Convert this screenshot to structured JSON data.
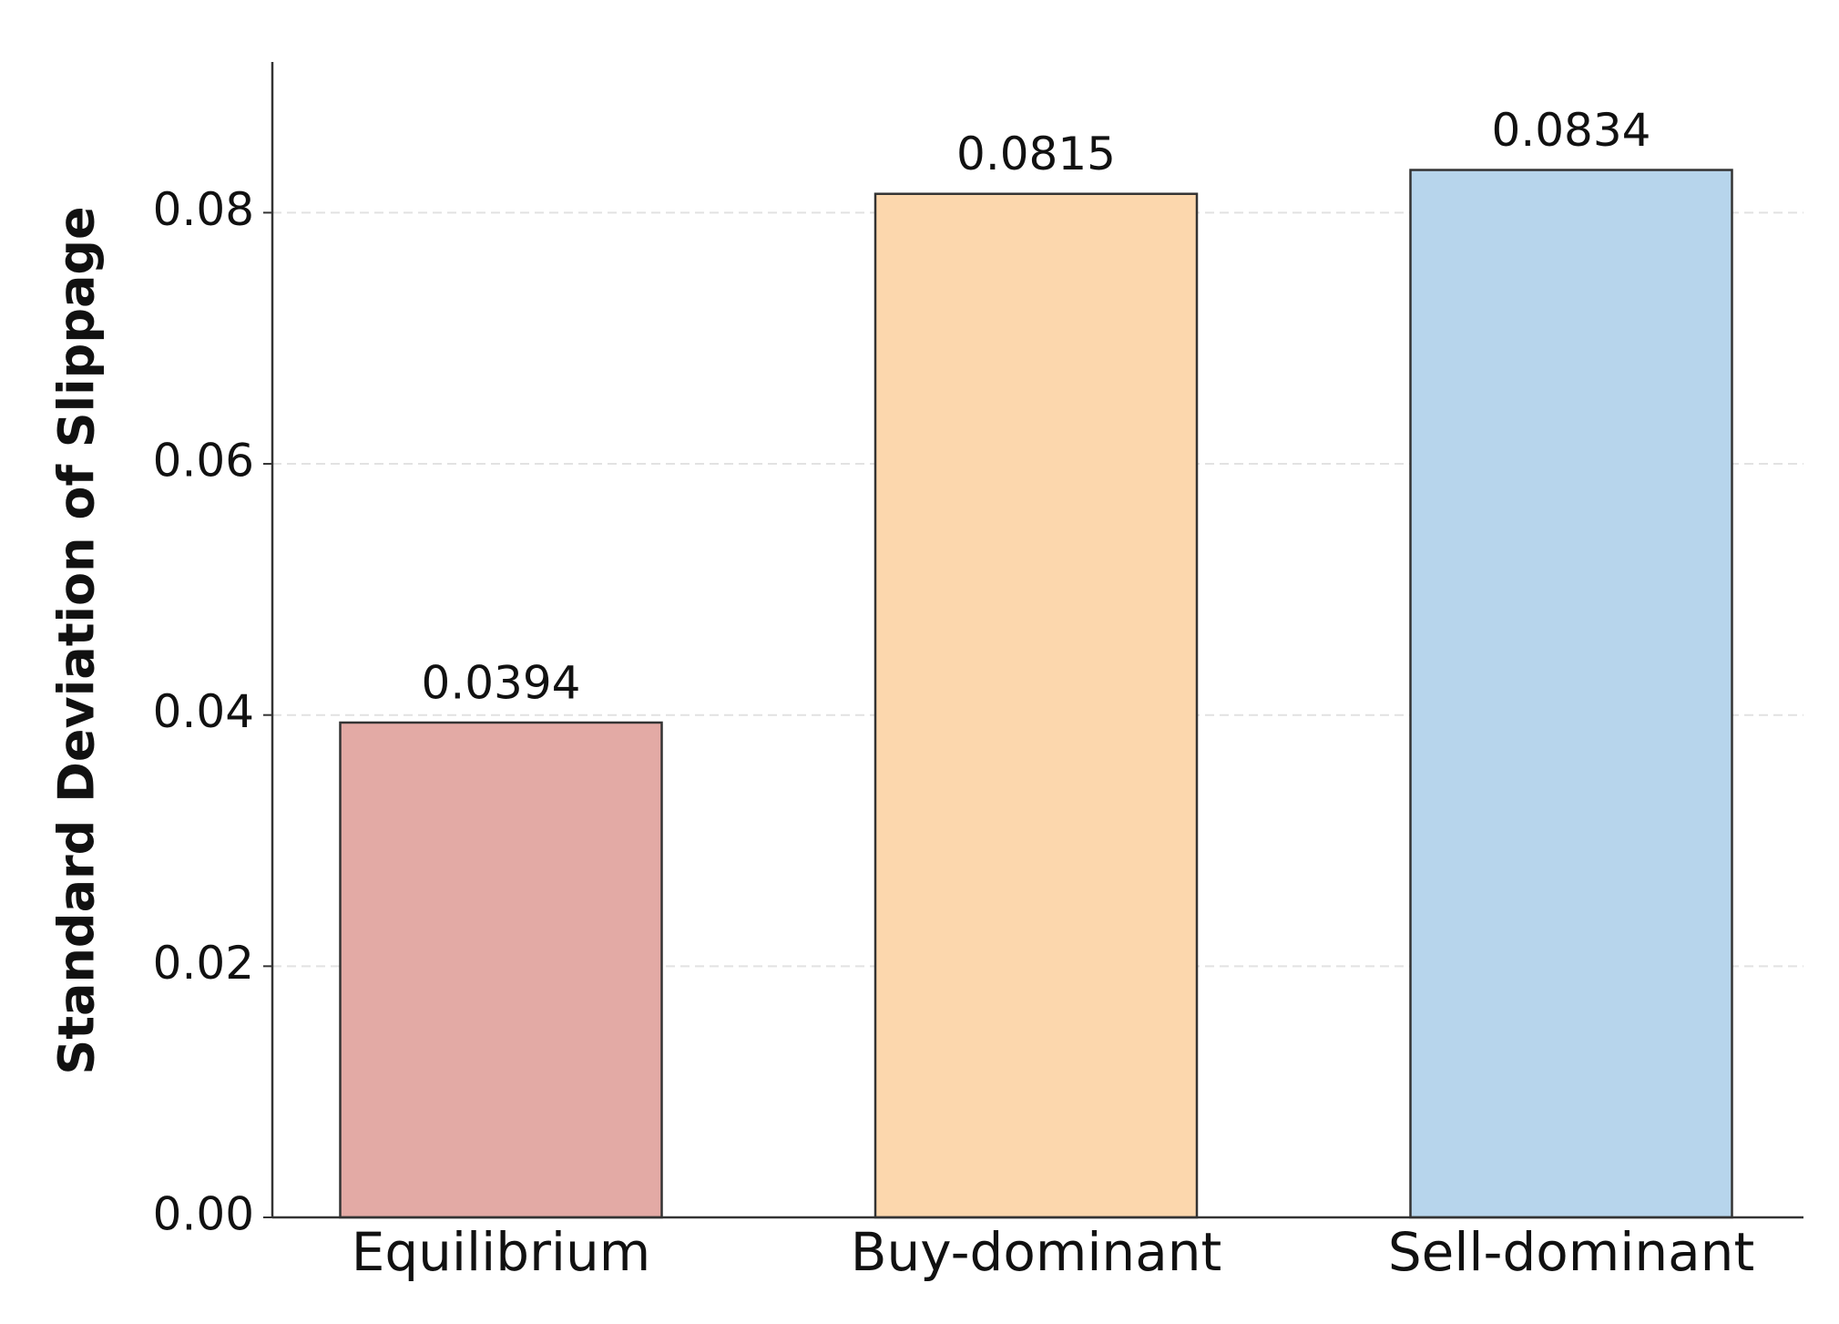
{
  "chart_data": {
    "type": "bar",
    "ylabel": "Standard Deviation of Slippage",
    "categories": [
      "Equilibrium",
      "Buy-dominant",
      "Sell-dominant"
    ],
    "values": [
      0.0394,
      0.0815,
      0.0834
    ],
    "colors": [
      "#e3aaa5",
      "#fcd7ad",
      "#b7d5ec"
    ],
    "ylim": [
      0,
      0.092
    ],
    "yticks": [
      {
        "value": 0,
        "label": "0.00"
      },
      {
        "value": 0.02,
        "label": "0.02"
      },
      {
        "value": 0.04,
        "label": "0.04"
      },
      {
        "value": 0.06,
        "label": "0.06"
      },
      {
        "value": 0.08,
        "label": "0.08"
      }
    ],
    "grid": true
  }
}
